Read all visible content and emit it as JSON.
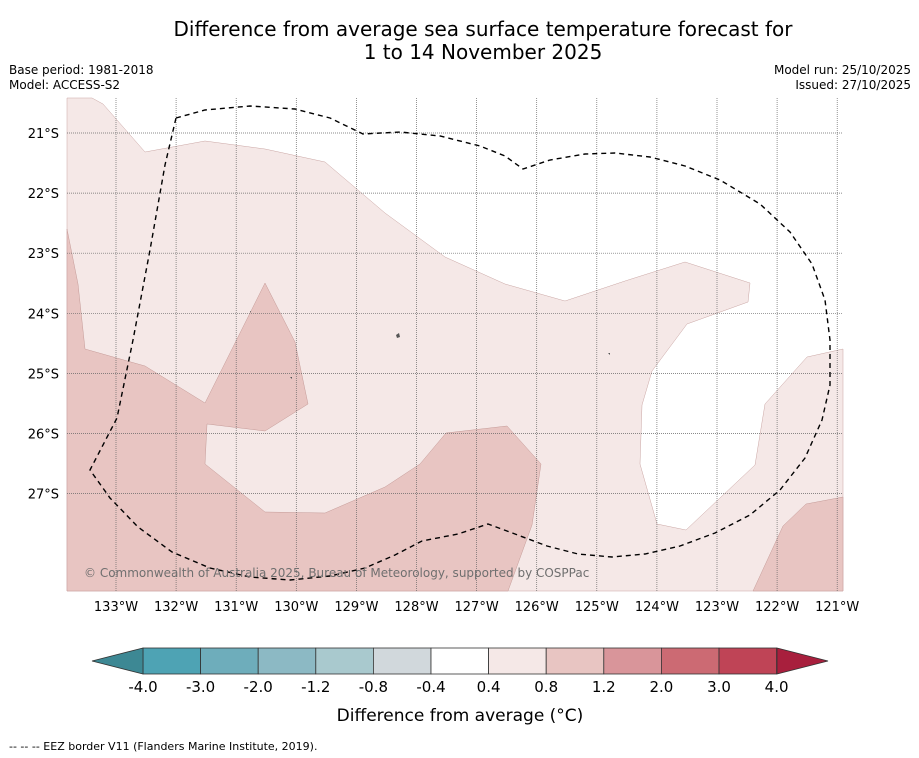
{
  "title": {
    "line1": "Difference from average sea surface temperature forecast for",
    "line2": "1 to 14 November 2025"
  },
  "meta": {
    "base_period": "Base period: 1981-2018",
    "model": "Model: ACCESS-S2",
    "model_run": "Model run: 25/10/2025",
    "issued": "Issued: 27/10/2025"
  },
  "map": {
    "lat_labels": [
      "21°S",
      "22°S",
      "23°S",
      "24°S",
      "25°S",
      "26°S",
      "27°S"
    ],
    "lon_labels": [
      "133°W",
      "132°W",
      "131°W",
      "130°W",
      "129°W",
      "128°W",
      "127°W",
      "126°W",
      "125°W",
      "124°W",
      "123°W",
      "122°W",
      "121°W"
    ],
    "copyright": "© Commonwealth of Australia 2025, Bureau of Meteorology, supported by COSPPac"
  },
  "legend": {
    "title": "Difference from average (°C)",
    "tick_labels": [
      "-4.0",
      "-3.0",
      "-2.0",
      "-1.2",
      "-0.8",
      "-0.4",
      "0.4",
      "0.8",
      "1.2",
      "2.0",
      "3.0",
      "4.0"
    ],
    "colors": [
      "#4ea3b4",
      "#6eadbb",
      "#8cb9c4",
      "#a9c9ce",
      "#d1d8dc",
      "#ffffff",
      "#f5e8e7",
      "#e8c5c2",
      "#d9959a",
      "#cc6a73",
      "#bf4456"
    ],
    "min_arrow_color": "#3d8894",
    "max_arrow_color": "#a81f3d"
  },
  "footnote": "-- -- -- EEZ border V11 (Flanders Marine Institute, 2019)."
}
